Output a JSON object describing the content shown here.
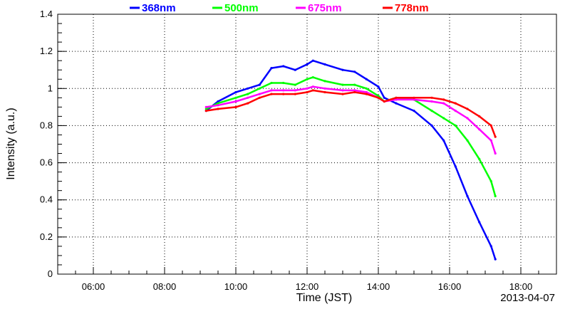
{
  "chart_data": {
    "type": "line",
    "xlabel": "Time (JST)",
    "ylabel": "Intensity (a.u.)",
    "date": "2013-04-07",
    "xlim": [
      "05:00",
      "19:00"
    ],
    "ylim": [
      0,
      1.4
    ],
    "x_ticks": [
      "06:00",
      "08:00",
      "10:00",
      "12:00",
      "14:00",
      "16:00",
      "18:00"
    ],
    "y_ticks": [
      "0",
      "0.2",
      "0.4",
      "0.6",
      "0.8",
      "1",
      "1.2",
      "1.4"
    ],
    "grid": true,
    "legend_position": "top",
    "series": [
      {
        "name": "368nm",
        "color": "#0000ff",
        "points": [
          [
            "09:10",
            0.88
          ],
          [
            "09:30",
            0.93
          ],
          [
            "10:00",
            0.98
          ],
          [
            "10:20",
            1.0
          ],
          [
            "10:40",
            1.02
          ],
          [
            "11:00",
            1.11
          ],
          [
            "11:20",
            1.12
          ],
          [
            "11:40",
            1.1
          ],
          [
            "12:00",
            1.13
          ],
          [
            "12:10",
            1.15
          ],
          [
            "12:30",
            1.13
          ],
          [
            "13:00",
            1.1
          ],
          [
            "13:20",
            1.09
          ],
          [
            "13:40",
            1.05
          ],
          [
            "14:00",
            1.01
          ],
          [
            "14:10",
            0.95
          ],
          [
            "14:30",
            0.92
          ],
          [
            "15:00",
            0.88
          ],
          [
            "15:30",
            0.8
          ],
          [
            "15:50",
            0.72
          ],
          [
            "16:10",
            0.58
          ],
          [
            "16:30",
            0.42
          ],
          [
            "16:50",
            0.28
          ],
          [
            "17:10",
            0.15
          ],
          [
            "17:17",
            0.08
          ]
        ]
      },
      {
        "name": "500nm",
        "color": "#00ff00",
        "points": [
          [
            "09:10",
            0.89
          ],
          [
            "09:30",
            0.92
          ],
          [
            "10:00",
            0.95
          ],
          [
            "10:20",
            0.97
          ],
          [
            "10:40",
            1.0
          ],
          [
            "11:00",
            1.03
          ],
          [
            "11:20",
            1.03
          ],
          [
            "11:40",
            1.02
          ],
          [
            "12:00",
            1.05
          ],
          [
            "12:10",
            1.06
          ],
          [
            "12:30",
            1.04
          ],
          [
            "13:00",
            1.02
          ],
          [
            "13:20",
            1.02
          ],
          [
            "13:40",
            1.0
          ],
          [
            "14:00",
            0.96
          ],
          [
            "14:10",
            0.93
          ],
          [
            "14:30",
            0.95
          ],
          [
            "15:00",
            0.94
          ],
          [
            "15:30",
            0.88
          ],
          [
            "15:50",
            0.84
          ],
          [
            "16:10",
            0.8
          ],
          [
            "16:30",
            0.72
          ],
          [
            "16:50",
            0.62
          ],
          [
            "17:10",
            0.5
          ],
          [
            "17:17",
            0.42
          ]
        ]
      },
      {
        "name": "675nm",
        "color": "#ff00ff",
        "points": [
          [
            "09:10",
            0.9
          ],
          [
            "09:30",
            0.91
          ],
          [
            "10:00",
            0.93
          ],
          [
            "10:20",
            0.95
          ],
          [
            "10:40",
            0.97
          ],
          [
            "11:00",
            0.99
          ],
          [
            "11:20",
            0.99
          ],
          [
            "11:40",
            0.99
          ],
          [
            "12:00",
            1.0
          ],
          [
            "12:10",
            1.01
          ],
          [
            "12:30",
            1.0
          ],
          [
            "13:00",
            0.99
          ],
          [
            "13:20",
            0.99
          ],
          [
            "13:40",
            0.98
          ],
          [
            "14:00",
            0.95
          ],
          [
            "14:10",
            0.93
          ],
          [
            "14:30",
            0.94
          ],
          [
            "15:00",
            0.94
          ],
          [
            "15:30",
            0.93
          ],
          [
            "15:50",
            0.92
          ],
          [
            "16:10",
            0.88
          ],
          [
            "16:30",
            0.84
          ],
          [
            "16:50",
            0.78
          ],
          [
            "17:10",
            0.72
          ],
          [
            "17:17",
            0.65
          ]
        ]
      },
      {
        "name": "778nm",
        "color": "#ff0000",
        "points": [
          [
            "09:10",
            0.88
          ],
          [
            "09:30",
            0.89
          ],
          [
            "10:00",
            0.9
          ],
          [
            "10:20",
            0.92
          ],
          [
            "10:40",
            0.95
          ],
          [
            "11:00",
            0.97
          ],
          [
            "11:20",
            0.97
          ],
          [
            "11:40",
            0.97
          ],
          [
            "12:00",
            0.98
          ],
          [
            "12:10",
            0.99
          ],
          [
            "12:30",
            0.98
          ],
          [
            "13:00",
            0.97
          ],
          [
            "13:20",
            0.98
          ],
          [
            "13:40",
            0.97
          ],
          [
            "14:00",
            0.95
          ],
          [
            "14:10",
            0.93
          ],
          [
            "14:30",
            0.95
          ],
          [
            "15:00",
            0.95
          ],
          [
            "15:30",
            0.95
          ],
          [
            "15:50",
            0.94
          ],
          [
            "16:10",
            0.92
          ],
          [
            "16:30",
            0.89
          ],
          [
            "16:50",
            0.85
          ],
          [
            "17:10",
            0.8
          ],
          [
            "17:17",
            0.74
          ]
        ]
      }
    ]
  }
}
